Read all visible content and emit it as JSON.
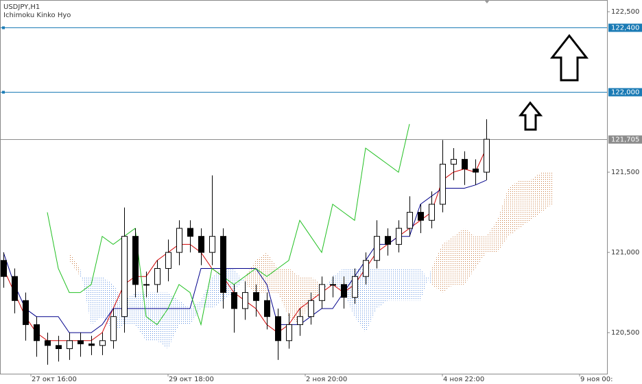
{
  "chart_data": {
    "type": "candlestick",
    "title": "USDJPY,H1",
    "indicator": "Ichimoku Kinko Hyo",
    "x": [
      -10,
      -6,
      -2,
      2,
      6,
      10,
      14,
      18,
      22,
      26,
      30,
      34,
      38,
      42,
      46,
      50,
      54,
      58,
      62,
      66,
      70,
      74,
      78,
      82,
      86,
      90,
      94,
      98,
      102,
      106,
      110,
      114,
      118,
      122,
      126,
      130,
      134,
      138,
      142,
      146,
      150,
      154,
      158,
      162,
      166,
      170,
      174,
      178,
      182,
      186,
      190
    ],
    "open": [
      120.95,
      120.85,
      120.7,
      120.55,
      120.45,
      120.42,
      120.4,
      120.45,
      120.43,
      120.42,
      120.45,
      120.6,
      121.1,
      120.8,
      120.8,
      120.9,
      121.0,
      121.15,
      121.1,
      121.0,
      121.1,
      120.75,
      120.65,
      120.75,
      120.7,
      120.6,
      120.45,
      120.55,
      120.6,
      120.7,
      120.8,
      120.8,
      120.72,
      120.85,
      120.95,
      121.1,
      121.05,
      121.15,
      121.25,
      121.2,
      121.3,
      121.55,
      121.58,
      121.52,
      121.5,
      null,
      null,
      null,
      null,
      null,
      null
    ],
    "high": [
      121.0,
      120.9,
      120.75,
      120.6,
      120.5,
      120.48,
      120.5,
      120.5,
      120.48,
      120.5,
      120.65,
      121.28,
      121.15,
      120.88,
      120.95,
      121.08,
      121.2,
      121.2,
      121.15,
      121.48,
      121.15,
      120.8,
      120.82,
      120.8,
      120.75,
      120.65,
      120.62,
      120.65,
      120.75,
      120.85,
      120.85,
      120.85,
      120.9,
      121.0,
      121.2,
      121.15,
      121.2,
      121.35,
      121.3,
      121.38,
      121.7,
      121.65,
      121.63,
      121.58,
      121.83,
      null,
      null,
      null,
      null,
      null,
      null
    ],
    "low": [
      120.78,
      120.62,
      120.45,
      120.35,
      120.3,
      120.32,
      120.33,
      120.35,
      120.36,
      120.36,
      120.4,
      120.5,
      120.72,
      120.72,
      120.75,
      120.82,
      120.92,
      121.0,
      120.92,
      120.92,
      120.65,
      120.5,
      120.58,
      120.6,
      120.52,
      120.33,
      120.4,
      120.48,
      120.55,
      120.65,
      120.72,
      120.65,
      120.68,
      120.8,
      120.9,
      120.98,
      121.0,
      121.1,
      121.12,
      121.15,
      121.25,
      121.45,
      121.42,
      121.42,
      121.45,
      null,
      null,
      null,
      null,
      null,
      null
    ],
    "close": [
      120.85,
      120.7,
      120.55,
      120.45,
      120.42,
      120.4,
      120.45,
      120.43,
      120.42,
      120.45,
      120.6,
      121.1,
      120.8,
      120.8,
      120.9,
      121.0,
      121.15,
      121.1,
      121.0,
      121.1,
      120.75,
      120.65,
      120.75,
      120.7,
      120.6,
      120.45,
      120.55,
      120.6,
      120.7,
      120.8,
      120.8,
      120.72,
      120.85,
      120.95,
      121.1,
      121.05,
      121.15,
      121.25,
      121.2,
      121.3,
      121.55,
      121.58,
      121.52,
      121.5,
      121.705,
      null,
      null,
      null,
      null,
      null,
      null
    ],
    "candle_color": "#000000",
    "series": [
      {
        "color": "#d00000",
        "values": [
          120.9,
          120.75,
          120.6,
          120.5,
          120.45,
          120.45,
          120.45,
          120.45,
          120.45,
          120.5,
          120.65,
          120.8,
          120.85,
          120.85,
          120.95,
          121.0,
          121.05,
          121.05,
          121.0,
          120.9,
          120.85,
          120.75,
          120.7,
          120.65,
          120.55,
          120.5,
          120.55,
          120.65,
          120.7,
          120.75,
          120.8,
          120.75,
          120.8,
          120.9,
          121.0,
          121.05,
          121.1,
          121.15,
          121.2,
          121.25,
          121.45,
          121.5,
          121.52,
          121.5,
          121.65,
          null,
          null,
          null,
          null,
          null,
          null
        ]
      },
      {
        "color": "#00008b",
        "values": [
          121.0,
          120.8,
          120.65,
          120.6,
          120.6,
          120.6,
          120.5,
          120.5,
          120.5,
          120.55,
          120.65,
          120.65,
          120.65,
          120.65,
          120.65,
          120.65,
          120.65,
          120.65,
          120.9,
          120.9,
          120.9,
          120.9,
          120.9,
          120.9,
          120.8,
          120.55,
          120.55,
          120.55,
          120.6,
          120.65,
          120.65,
          120.75,
          120.85,
          120.95,
          121.05,
          121.05,
          121.1,
          121.1,
          121.3,
          121.35,
          121.4,
          121.4,
          121.4,
          121.42,
          121.45,
          null,
          null,
          null,
          null,
          null,
          null
        ]
      },
      {
        "color": "#22c022",
        "values": [
          null,
          null,
          null,
          null,
          121.25,
          120.9,
          120.75,
          120.75,
          120.8,
          121.1,
          121.05,
          121.1,
          121.15,
          120.6,
          120.55,
          120.65,
          120.8,
          120.75,
          120.55,
          120.9,
          120.85,
          120.8,
          120.85,
          120.9,
          120.85,
          120.9,
          120.95,
          121.2,
          121.1,
          121.0,
          121.3,
          121.25,
          121.2,
          121.65,
          121.6,
          121.55,
          121.5,
          121.8,
          null,
          null,
          null,
          null,
          null,
          null,
          null,
          null,
          null,
          null,
          null,
          null,
          null
        ]
      }
    ],
    "cloud": {
      "span_a": [
        null,
        null,
        null,
        null,
        null,
        null,
        120.95,
        120.85,
        120.85,
        120.85,
        120.8,
        120.7,
        120.75,
        120.75,
        120.75,
        120.75,
        120.7,
        120.65,
        120.7,
        120.85,
        120.9,
        120.9,
        120.8,
        120.75,
        120.75,
        120.75,
        120.6,
        120.55,
        120.7,
        120.75,
        120.85,
        120.9,
        120.9,
        120.9,
        120.9,
        120.9,
        120.9,
        120.9,
        120.9,
        120.8,
        120.75,
        120.8,
        120.8,
        120.9,
        121.0,
        121.0,
        121.1,
        121.15,
        121.2,
        121.25,
        121.3
      ],
      "span_b": [
        null,
        null,
        null,
        null,
        null,
        null,
        121.0,
        120.9,
        120.55,
        120.6,
        120.5,
        120.55,
        120.55,
        120.45,
        120.45,
        120.4,
        120.55,
        120.55,
        120.65,
        120.65,
        120.7,
        120.75,
        120.85,
        120.95,
        121.0,
        120.9,
        120.9,
        120.85,
        120.85,
        120.8,
        120.8,
        120.75,
        120.6,
        120.5,
        120.65,
        120.7,
        120.7,
        120.7,
        120.7,
        120.9,
        121.05,
        121.1,
        121.15,
        121.1,
        121.1,
        121.2,
        121.4,
        121.45,
        121.45,
        121.5,
        121.5
      ],
      "up_color": "#5a8ee0",
      "down_color": "#c87a40"
    },
    "xlim": [
      -11.25,
      210
    ],
    "xticks": [
      {
        "value": 0,
        "label": "27 окт 16:00"
      },
      {
        "value": 50,
        "label": "29 окт 18:00"
      },
      {
        "value": 100,
        "label": "2 ноя 20:00"
      },
      {
        "value": 150,
        "label": "4 ноя 22:00"
      },
      {
        "value": 200,
        "label": "9 ноя 00:"
      }
    ],
    "ylim": [
      120.244,
      122.573
    ],
    "yticks": [
      {
        "value": 122.5,
        "label": "122,500"
      },
      {
        "value": 121.5,
        "label": "121,500"
      },
      {
        "value": 121.0,
        "label": "121,000"
      },
      {
        "value": 120.5,
        "label": "120,500"
      }
    ],
    "levels": [
      {
        "value": 122.4,
        "label": "122,400"
      },
      {
        "value": 122.0,
        "label": "122,000"
      }
    ],
    "level_color": "#1b7bb5",
    "last_price": {
      "value": 121.705,
      "label": "121,705"
    },
    "last_price_color": "#8c8c8c"
  }
}
